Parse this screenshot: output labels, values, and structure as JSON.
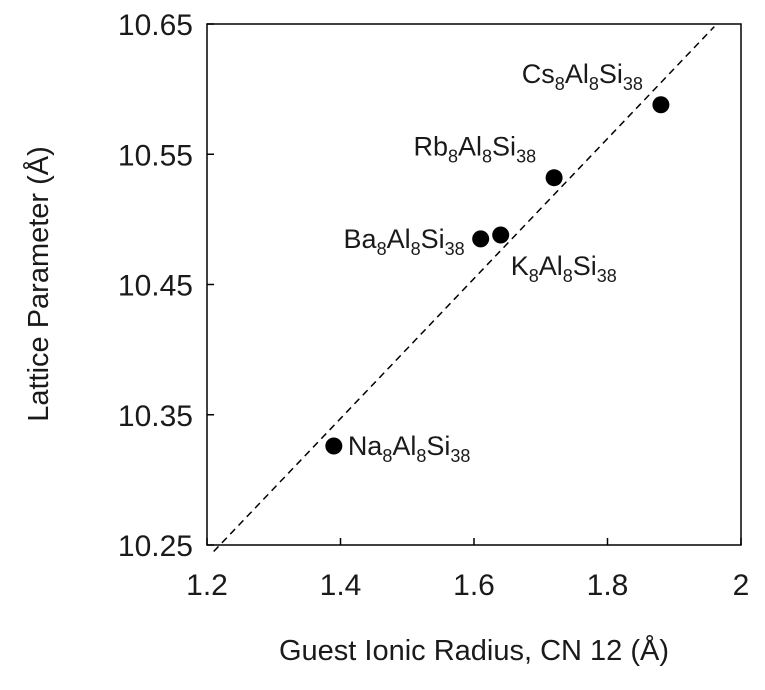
{
  "chart_data": {
    "type": "scatter",
    "title": "",
    "xlabel": "Guest Ionic Radius, CN 12 (Å)",
    "ylabel": "Lattice Parameter (Å)",
    "xlim": [
      1.2,
      2.0
    ],
    "ylim": [
      10.25,
      10.65
    ],
    "x_ticks": [
      "1.2",
      "1.4",
      "1.6",
      "1.8",
      "2"
    ],
    "y_ticks": [
      "10.25",
      "10.35",
      "10.45",
      "10.55",
      "10.65"
    ],
    "grid": false,
    "legend": "none",
    "points": [
      {
        "x": 1.39,
        "y": 10.326,
        "label": {
          "el": "Na",
          "a": "8",
          "b": "Al",
          "c": "8",
          "d": "Si",
          "e": "38"
        },
        "label_pos": "right"
      },
      {
        "x": 1.61,
        "y": 10.485,
        "label": {
          "el": "Ba",
          "a": "8",
          "b": "Al",
          "c": "8",
          "d": "Si",
          "e": "38"
        },
        "label_pos": "left"
      },
      {
        "x": 1.64,
        "y": 10.488,
        "label": {
          "el": "K",
          "a": "8",
          "b": "Al",
          "c": "8",
          "d": "Si",
          "e": "38"
        },
        "label_pos": "below-right"
      },
      {
        "x": 1.72,
        "y": 10.532,
        "label": {
          "el": "Rb",
          "a": "8",
          "b": "Al",
          "c": "8",
          "d": "Si",
          "e": "38"
        },
        "label_pos": "upper-left"
      },
      {
        "x": 1.88,
        "y": 10.588,
        "label": {
          "el": "Cs",
          "a": "8",
          "b": "Al",
          "c": "8",
          "d": "Si",
          "e": "38"
        },
        "label_pos": "upper-left"
      }
    ],
    "trendline": {
      "style": "dashed",
      "x": [
        1.21,
        1.96
      ],
      "y": [
        10.245,
        10.648
      ]
    },
    "colors": {
      "points": "#000000",
      "axes": "#000000",
      "trendline": "#000000"
    }
  }
}
